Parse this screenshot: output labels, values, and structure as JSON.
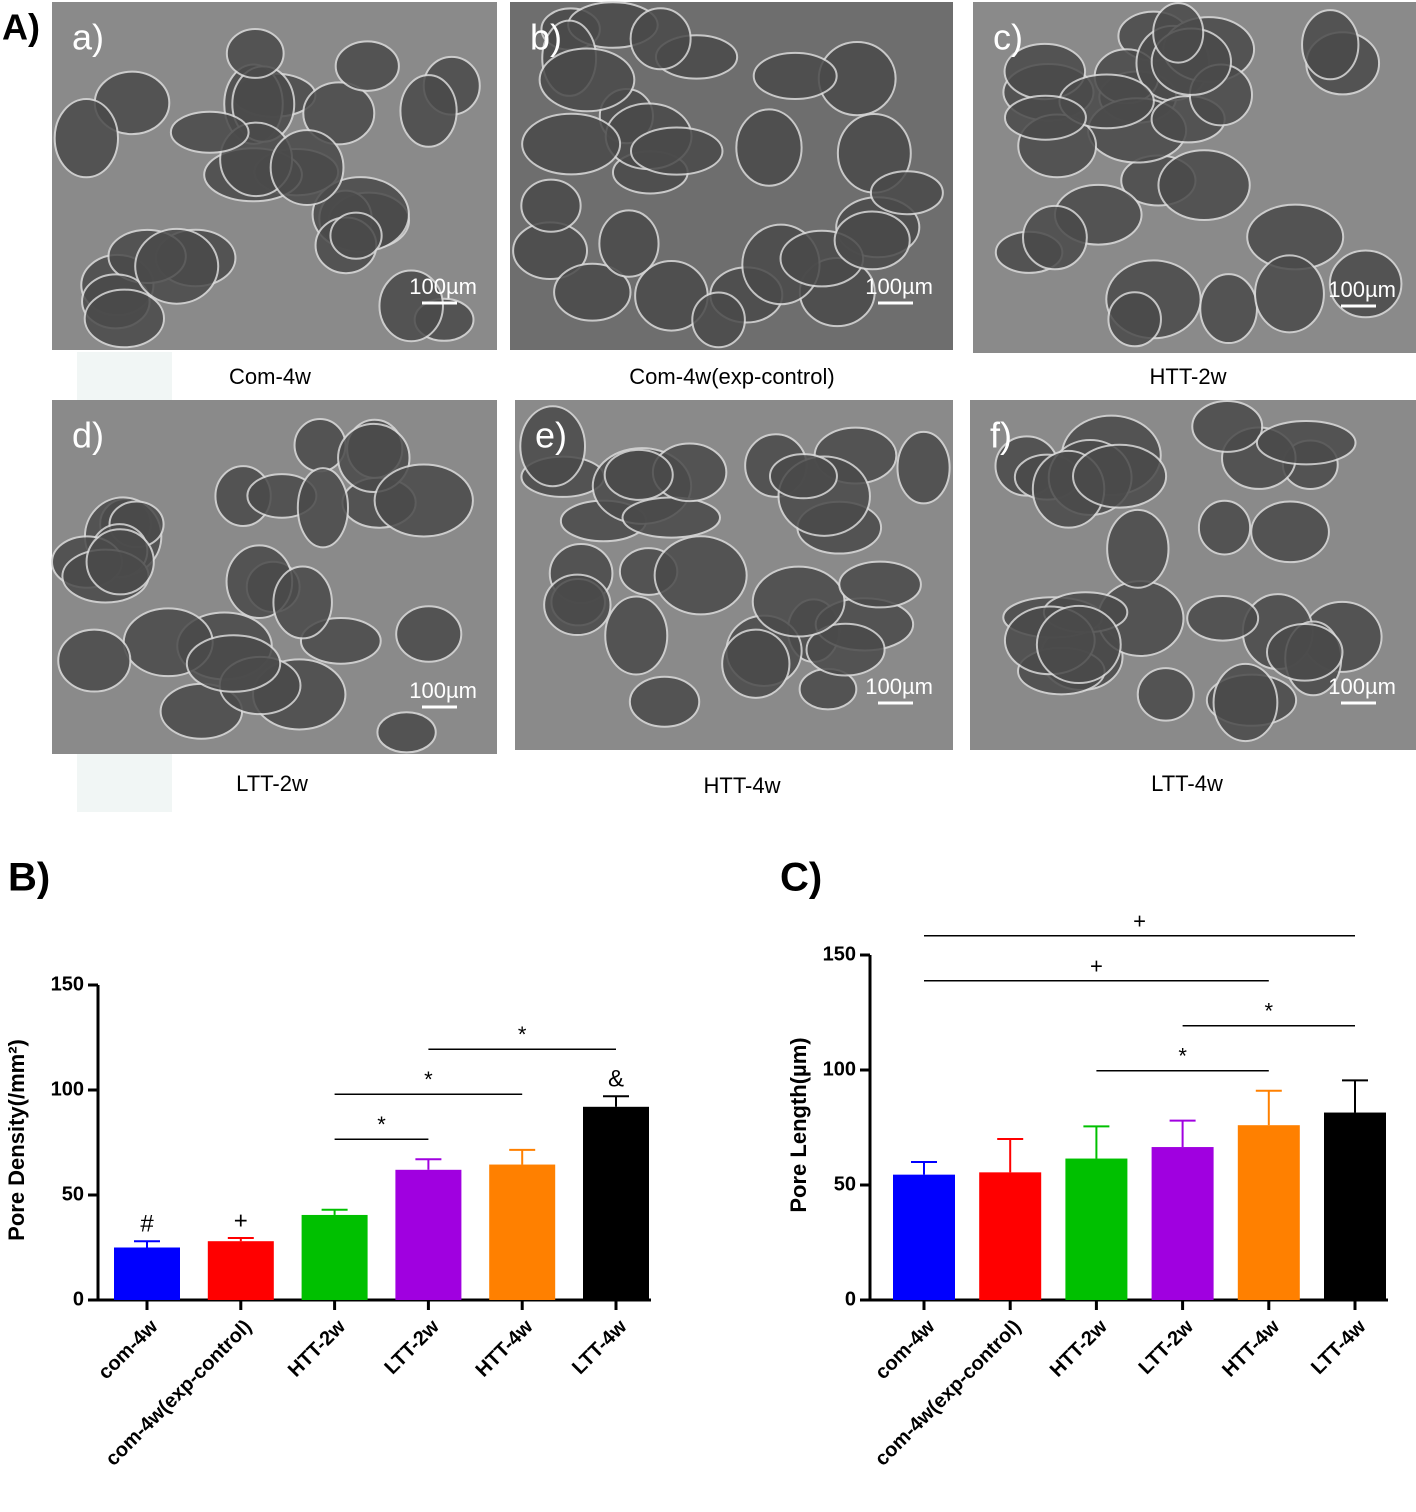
{
  "panel_a": {
    "label": "A)",
    "images": [
      {
        "letter": "a)",
        "scale": "100µm",
        "caption": "Com-4w"
      },
      {
        "letter": "b)",
        "scale": "100µm",
        "caption": "Com-4w(exp-control)"
      },
      {
        "letter": "c)",
        "scale": "100µm",
        "caption": "HTT-2w"
      },
      {
        "letter": "d)",
        "scale": "100µm",
        "caption": "LTT-2w"
      },
      {
        "letter": "e)",
        "scale": "100µm",
        "caption": "HTT-4w"
      },
      {
        "letter": "f)",
        "scale": "100µm",
        "caption": "LTT-4w"
      }
    ]
  },
  "chart_data": [
    {
      "type": "bar",
      "panel": "B)",
      "y_label": "Pore Density(/mm²)",
      "categories": [
        "com-4w",
        "com-4w(exp-control)",
        "HTT-2w",
        "LTT-2w",
        "HTT-4w",
        "LTT-4w"
      ],
      "values": [
        25,
        28,
        40.5,
        62,
        64.5,
        92
      ],
      "errors": [
        3,
        1.5,
        2.5,
        5,
        7,
        5
      ],
      "colors": [
        "#0000ff",
        "#ff0000",
        "#00c000",
        "#a000e0",
        "#ff8000",
        "#000000"
      ],
      "ylim": [
        0,
        150
      ],
      "yticks": [
        0,
        50,
        100,
        150
      ],
      "bar_symbols": [
        {
          "index": 0,
          "text": "#"
        },
        {
          "index": 1,
          "text": "+"
        },
        {
          "index": 5,
          "text": "&"
        }
      ],
      "comparisons": [
        {
          "label": "*",
          "from": 2,
          "to": 3
        },
        {
          "label": "*",
          "from": 2,
          "to": 4
        },
        {
          "label": "*",
          "from": 3,
          "to": 5
        }
      ]
    },
    {
      "type": "bar",
      "panel": "C)",
      "y_label": "Pore Length(µm)",
      "categories": [
        "com-4w",
        "com-4w(exp-control)",
        "HTT-2w",
        "LTT-2w",
        "HTT-4w",
        "LTT-4w"
      ],
      "values": [
        54.5,
        55.5,
        61.5,
        66.5,
        76,
        81.5
      ],
      "errors": [
        5.5,
        14.5,
        14,
        11.5,
        15,
        14
      ],
      "colors": [
        "#0000ff",
        "#ff0000",
        "#00c000",
        "#a000e0",
        "#ff8000",
        "#000000"
      ],
      "ylim": [
        0,
        150
      ],
      "yticks": [
        0,
        50,
        100,
        150
      ],
      "bar_symbols": [],
      "comparisons": [
        {
          "label": "*",
          "from": 2,
          "to": 4
        },
        {
          "label": "*",
          "from": 3,
          "to": 5
        },
        {
          "label": "+",
          "from": 0,
          "to": 4
        },
        {
          "label": "+",
          "from": 0,
          "to": 5
        }
      ]
    }
  ]
}
